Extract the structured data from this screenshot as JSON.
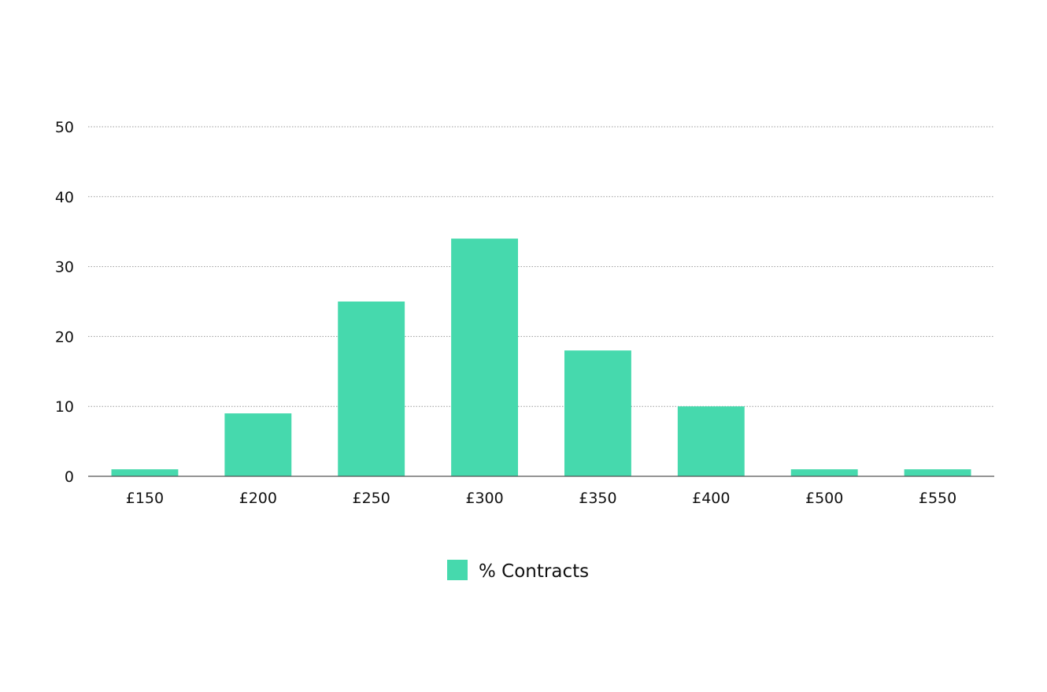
{
  "chart_data": {
    "type": "bar",
    "categories": [
      "£150",
      "£200",
      "£250",
      "£300",
      "£350",
      "£400",
      "£500",
      "£550"
    ],
    "series": [
      {
        "name": "% Contracts",
        "color": "#46d9ad",
        "values": [
          1,
          9,
          25,
          34,
          18,
          10,
          1,
          1
        ]
      }
    ],
    "ylim": [
      0,
      50
    ],
    "yticks": [
      0,
      10,
      20,
      30,
      40,
      50
    ],
    "grid": true,
    "legend_position": "bottom-center"
  }
}
